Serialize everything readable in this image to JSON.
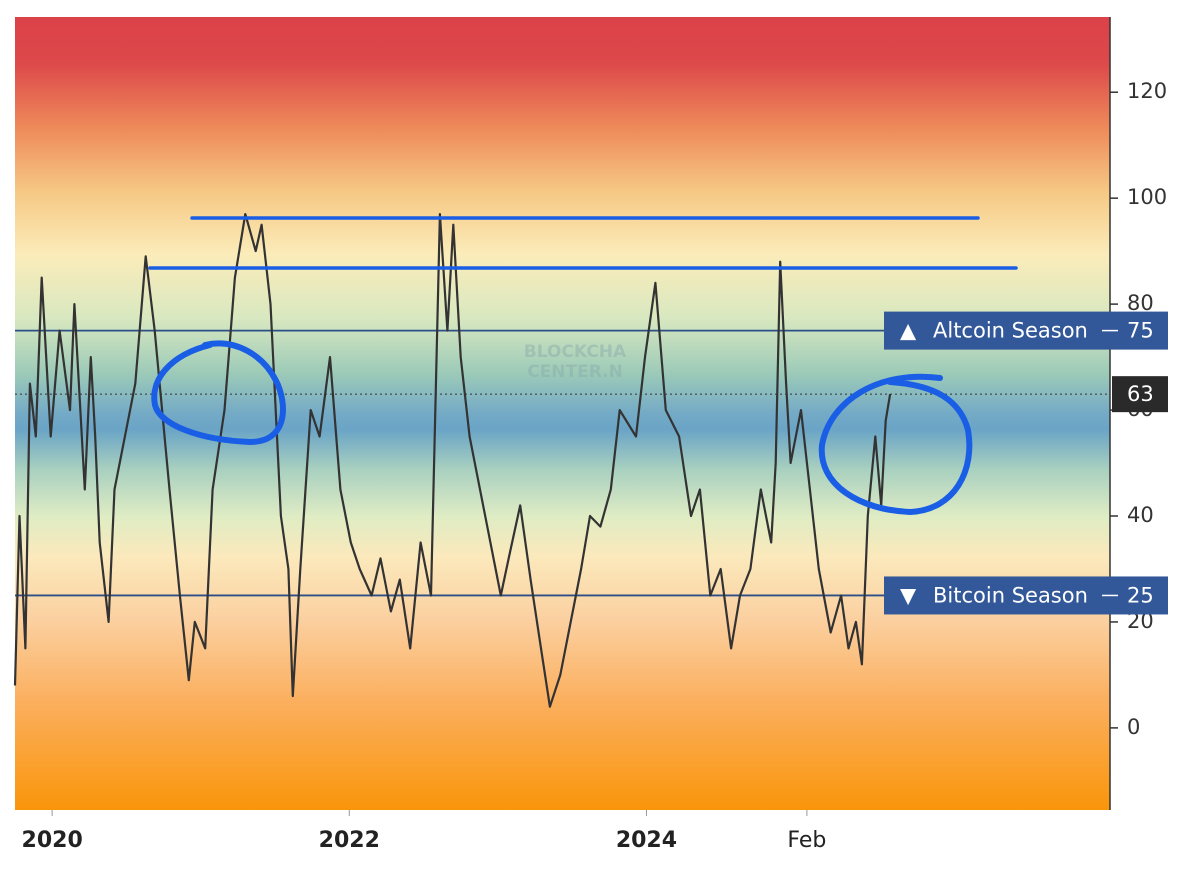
{
  "chart_data": {
    "type": "line",
    "x": [
      2019.75,
      2019.78,
      2019.82,
      2019.85,
      2019.89,
      2019.93,
      2019.99,
      2020.05,
      2020.12,
      2020.15,
      2020.22,
      2020.26,
      2020.29,
      2020.32,
      2020.38,
      2020.42,
      2020.49,
      2020.56,
      2020.63,
      2020.69,
      2020.74,
      2020.79,
      2020.86,
      2020.92,
      2020.96,
      2021.03,
      2021.08,
      2021.16,
      2021.23,
      2021.3,
      2021.37,
      2021.41,
      2021.47,
      2021.54,
      2021.59,
      2021.62,
      2021.67,
      2021.74,
      2021.8,
      2021.87,
      2021.94,
      2022.01,
      2022.07,
      2022.15,
      2022.21,
      2022.28,
      2022.34,
      2022.41,
      2022.48,
      2022.55,
      2022.61,
      2022.66,
      2022.7,
      2022.75,
      2022.81,
      2022.88,
      2022.95,
      2023.02,
      2023.08,
      2023.15,
      2023.22,
      2023.29,
      2023.35,
      2023.42,
      2023.49,
      2023.56,
      2023.62,
      2023.69,
      2023.76,
      2023.82,
      2023.93,
      2023.99,
      2024.06,
      2024.13,
      2024.22,
      2024.3,
      2024.36,
      2024.43,
      2024.5,
      2024.57,
      2024.63,
      2024.7,
      2024.77,
      2024.84,
      2024.87,
      2024.9,
      2024.94,
      2024.97,
      2025.04,
      2025.1,
      2025.16,
      2025.24,
      2025.31,
      2025.36,
      2025.41,
      2025.45,
      2025.49,
      2025.54,
      2025.58,
      2025.61,
      2025.64
    ],
    "series": [
      {
        "color": "#333333",
        "values": [
          8,
          40,
          15,
          65,
          55,
          85,
          55,
          75,
          60,
          80,
          45,
          70,
          55,
          35,
          20,
          45,
          55,
          65,
          89,
          75,
          60,
          45,
          25,
          9,
          20,
          15,
          45,
          60,
          85,
          97,
          90,
          95,
          80,
          40,
          30,
          6,
          30,
          60,
          55,
          70,
          45,
          35,
          30,
          25,
          32,
          22,
          28,
          15,
          35,
          25,
          97,
          75,
          95,
          70,
          55,
          45,
          35,
          25,
          33,
          42,
          28,
          15,
          4,
          10,
          20,
          30,
          40,
          38,
          45,
          60,
          55,
          70,
          84,
          60,
          55,
          40,
          45,
          25,
          30,
          15,
          25,
          30,
          45,
          35,
          50,
          88,
          65,
          50,
          60,
          45,
          30,
          18,
          25,
          15,
          20,
          12,
          40,
          55,
          42,
          58,
          63
        ]
      }
    ],
    "xlim": [
      2019.75,
      2027.12
    ],
    "xticks": [
      {
        "value": 2020,
        "label": "2020"
      },
      {
        "value": 2022,
        "label": "2022"
      },
      {
        "value": 2024,
        "label": "2024"
      },
      {
        "value": 2025.08,
        "label": "Feb"
      }
    ],
    "ylim": [
      -15.5,
      134.2
    ],
    "yticks": [
      0,
      20,
      40,
      60,
      80,
      100,
      120
    ],
    "reference_lines": [
      {
        "value": 75,
        "marker": "▲",
        "label": "Altcoin Season"
      },
      {
        "value": 25,
        "marker": "▼",
        "label": "Bitcoin Season"
      }
    ],
    "current_value": 63,
    "watermark": [
      "BLOCKCHA",
      "CENTER.N"
    ]
  }
}
